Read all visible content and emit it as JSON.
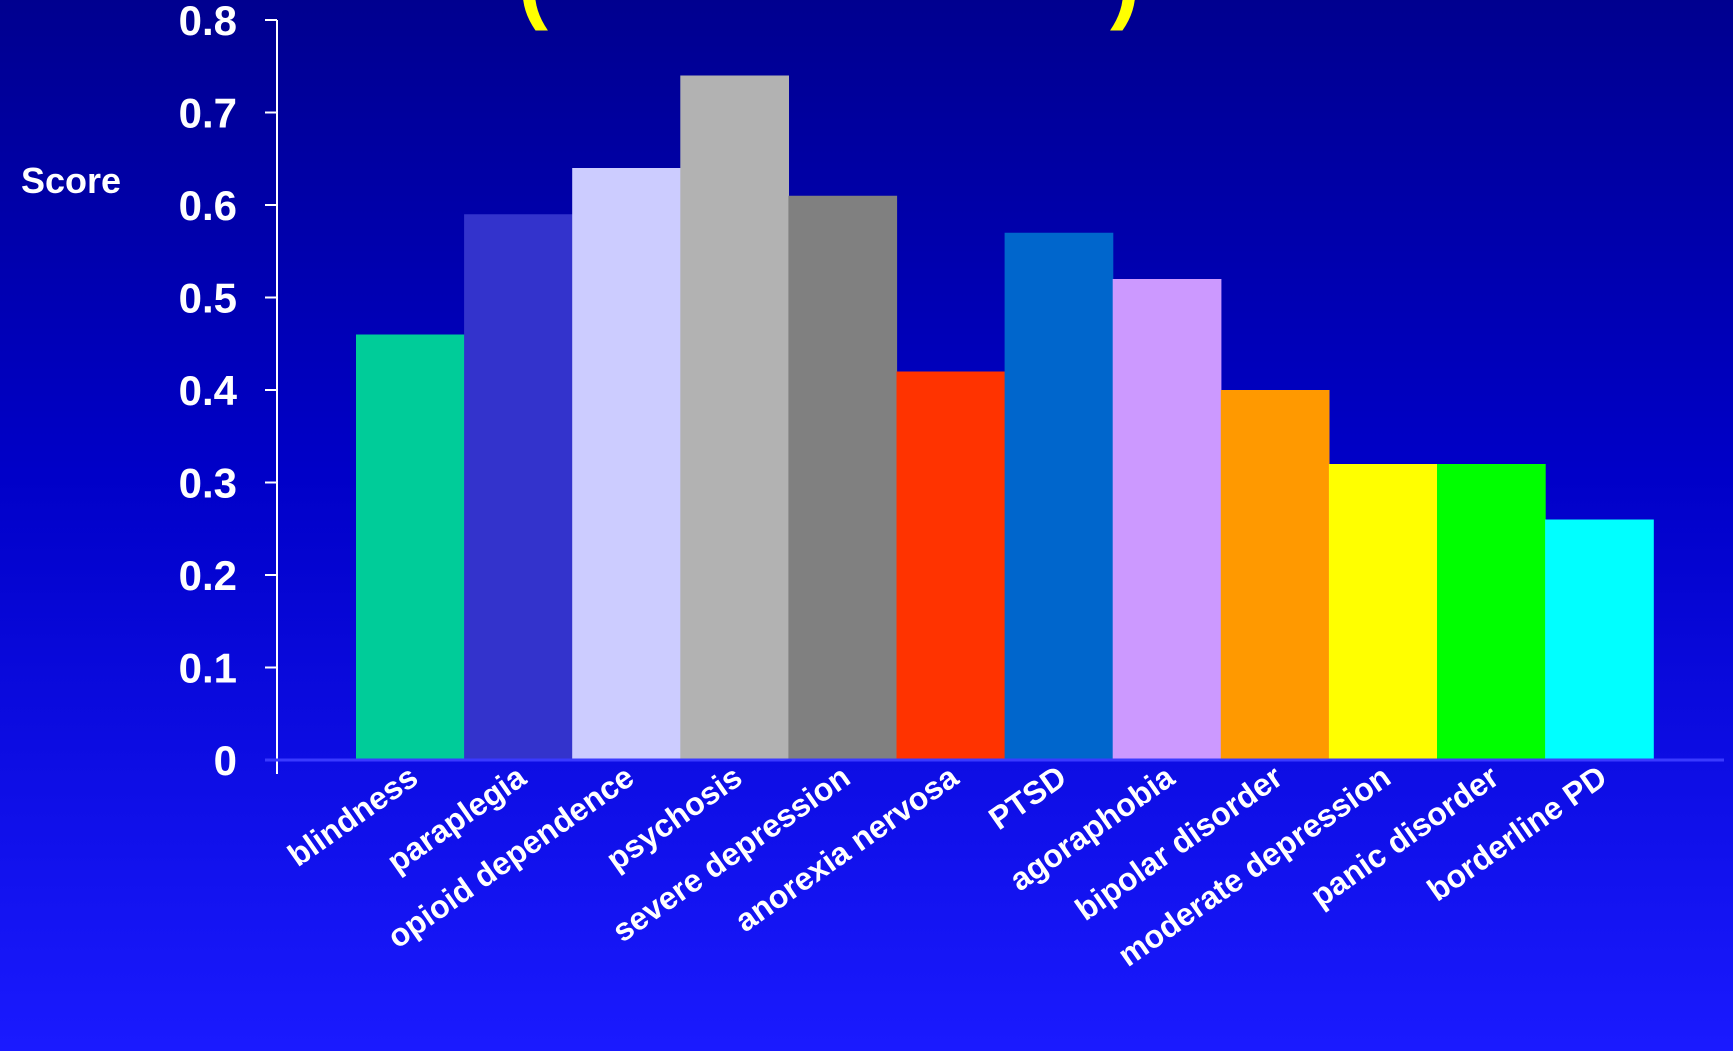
{
  "chart_data": {
    "type": "bar",
    "title_fragment_left": "(",
    "title_fragment_right": ")",
    "ylabel": "Score",
    "xlabel": "",
    "ylim": [
      0,
      0.8
    ],
    "yticks": [
      "0",
      "0.1",
      "0.2",
      "0.3",
      "0.4",
      "0.5",
      "0.6",
      "0.7",
      "0.8"
    ],
    "grid": false,
    "legend": "none",
    "categories": [
      "blindness",
      "paraplegia",
      "opioid dependence",
      "psychosis",
      "severe depression",
      "anorexia nervosa",
      "PTSD",
      "agoraphobia",
      "bipolar disorder",
      "moderate depression",
      "panic disorder",
      "borderline PD"
    ],
    "values": [
      0.46,
      0.59,
      0.64,
      0.74,
      0.61,
      0.42,
      0.57,
      0.52,
      0.4,
      0.32,
      0.32,
      0.26
    ],
    "colors": [
      "#00cc99",
      "#3333cc",
      "#ccccff",
      "#b2b2b2",
      "#808080",
      "#ff3300",
      "#0066cc",
      "#cc99ff",
      "#ff9900",
      "#ffff00",
      "#00ff00",
      "#00ffff"
    ],
    "axis_color": "#ffffff",
    "title_color": "#ffff00"
  }
}
